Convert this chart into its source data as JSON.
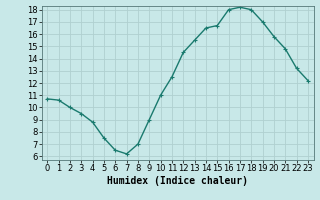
{
  "x": [
    0,
    1,
    2,
    3,
    4,
    5,
    6,
    7,
    8,
    9,
    10,
    11,
    12,
    13,
    14,
    15,
    16,
    17,
    18,
    19,
    20,
    21,
    22,
    23
  ],
  "y": [
    10.7,
    10.6,
    10.0,
    9.5,
    8.8,
    7.5,
    6.5,
    6.2,
    7.0,
    9.0,
    11.0,
    12.5,
    14.5,
    15.5,
    16.5,
    16.7,
    18.0,
    18.2,
    18.0,
    17.0,
    15.8,
    14.8,
    13.2,
    12.2
  ],
  "xlabel": "Humidex (Indice chaleur)",
  "ylim": [
    6,
    18
  ],
  "xlim": [
    -0.5,
    23.5
  ],
  "yticks": [
    6,
    7,
    8,
    9,
    10,
    11,
    12,
    13,
    14,
    15,
    16,
    17,
    18
  ],
  "xticks": [
    0,
    1,
    2,
    3,
    4,
    5,
    6,
    7,
    8,
    9,
    10,
    11,
    12,
    13,
    14,
    15,
    16,
    17,
    18,
    19,
    20,
    21,
    22,
    23
  ],
  "line_color": "#1a7a6e",
  "marker": "+",
  "bg_color": "#c8e8e8",
  "grid_color": "#b0d0d0",
  "xlabel_fontsize": 7,
  "tick_fontsize": 6
}
